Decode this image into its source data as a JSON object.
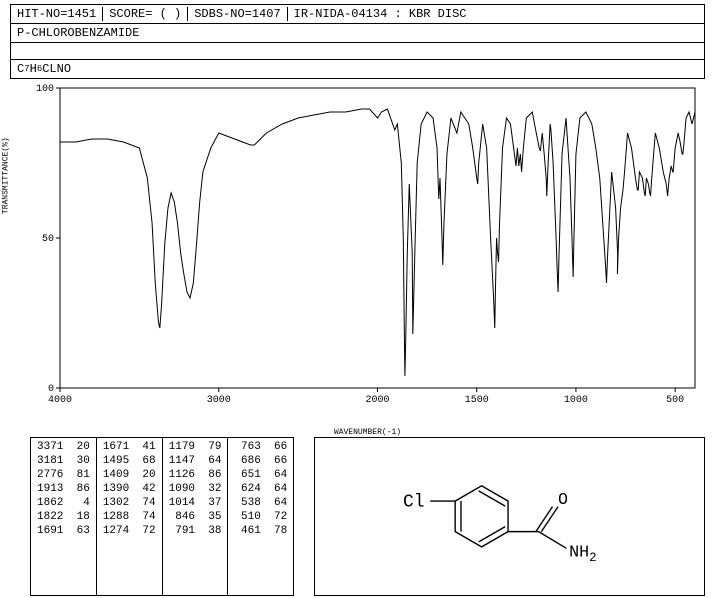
{
  "header": {
    "hit": "HIT-NO=1451",
    "score": "SCORE=  ( )",
    "sdbs": "SDBS-NO=1407",
    "spec": "IR-NIDA-04134 : KBR DISC"
  },
  "compound_name": "P-CHLOROBENZAMIDE",
  "formula_plain": "C7H6CLNO",
  "formula_parts": [
    "C",
    "7",
    "H",
    "6",
    "CLNO"
  ],
  "chart": {
    "type": "line",
    "xlabel": "WAVENUMBER(-1)",
    "ylabel": "TRANSMITTANCE(%)",
    "xlim": [
      4000,
      400
    ],
    "ylim": [
      0,
      100
    ],
    "xticks": [
      4000,
      3000,
      2000,
      1500,
      1000,
      500
    ],
    "yticks": [
      0,
      50,
      100
    ],
    "background_color": "#ffffff",
    "line_color": "#000000",
    "axis_color": "#000000",
    "line_width": 1,
    "series": [
      [
        4000,
        82
      ],
      [
        3900,
        82
      ],
      [
        3800,
        83
      ],
      [
        3700,
        83
      ],
      [
        3600,
        82
      ],
      [
        3500,
        80
      ],
      [
        3450,
        70
      ],
      [
        3420,
        55
      ],
      [
        3400,
        35
      ],
      [
        3380,
        22
      ],
      [
        3371,
        20
      ],
      [
        3360,
        28
      ],
      [
        3340,
        48
      ],
      [
        3320,
        60
      ],
      [
        3300,
        65
      ],
      [
        3280,
        62
      ],
      [
        3260,
        55
      ],
      [
        3240,
        45
      ],
      [
        3220,
        38
      ],
      [
        3200,
        32
      ],
      [
        3181,
        30
      ],
      [
        3160,
        35
      ],
      [
        3140,
        48
      ],
      [
        3120,
        62
      ],
      [
        3100,
        72
      ],
      [
        3050,
        80
      ],
      [
        3000,
        85
      ],
      [
        2950,
        84
      ],
      [
        2900,
        83
      ],
      [
        2850,
        82
      ],
      [
        2800,
        81
      ],
      [
        2776,
        81
      ],
      [
        2700,
        85
      ],
      [
        2600,
        88
      ],
      [
        2500,
        90
      ],
      [
        2400,
        91
      ],
      [
        2300,
        92
      ],
      [
        2200,
        92
      ],
      [
        2100,
        93
      ],
      [
        2050,
        93
      ],
      [
        2000,
        90
      ],
      [
        1980,
        92
      ],
      [
        1950,
        93
      ],
      [
        1913,
        86
      ],
      [
        1900,
        88
      ],
      [
        1880,
        75
      ],
      [
        1870,
        50
      ],
      [
        1865,
        20
      ],
      [
        1862,
        4
      ],
      [
        1858,
        15
      ],
      [
        1850,
        45
      ],
      [
        1840,
        68
      ],
      [
        1825,
        45
      ],
      [
        1822,
        18
      ],
      [
        1810,
        50
      ],
      [
        1800,
        75
      ],
      [
        1780,
        88
      ],
      [
        1750,
        92
      ],
      [
        1720,
        90
      ],
      [
        1700,
        80
      ],
      [
        1695,
        70
      ],
      [
        1691,
        63
      ],
      [
        1685,
        70
      ],
      [
        1680,
        60
      ],
      [
        1675,
        50
      ],
      [
        1671,
        41
      ],
      [
        1665,
        55
      ],
      [
        1650,
        78
      ],
      [
        1630,
        90
      ],
      [
        1600,
        85
      ],
      [
        1580,
        92
      ],
      [
        1560,
        90
      ],
      [
        1540,
        88
      ],
      [
        1520,
        80
      ],
      [
        1500,
        70
      ],
      [
        1495,
        68
      ],
      [
        1490,
        75
      ],
      [
        1470,
        88
      ],
      [
        1450,
        80
      ],
      [
        1430,
        50
      ],
      [
        1415,
        30
      ],
      [
        1409,
        20
      ],
      [
        1405,
        35
      ],
      [
        1400,
        50
      ],
      [
        1395,
        45
      ],
      [
        1390,
        42
      ],
      [
        1385,
        55
      ],
      [
        1370,
        80
      ],
      [
        1350,
        90
      ],
      [
        1330,
        88
      ],
      [
        1310,
        78
      ],
      [
        1302,
        74
      ],
      [
        1295,
        80
      ],
      [
        1288,
        74
      ],
      [
        1280,
        78
      ],
      [
        1274,
        72
      ],
      [
        1265,
        80
      ],
      [
        1250,
        90
      ],
      [
        1220,
        92
      ],
      [
        1200,
        85
      ],
      [
        1185,
        80
      ],
      [
        1179,
        79
      ],
      [
        1170,
        85
      ],
      [
        1160,
        78
      ],
      [
        1150,
        70
      ],
      [
        1147,
        64
      ],
      [
        1140,
        75
      ],
      [
        1130,
        88
      ],
      [
        1126,
        86
      ],
      [
        1115,
        75
      ],
      [
        1100,
        50
      ],
      [
        1095,
        40
      ],
      [
        1090,
        32
      ],
      [
        1085,
        45
      ],
      [
        1070,
        78
      ],
      [
        1050,
        90
      ],
      [
        1030,
        70
      ],
      [
        1020,
        50
      ],
      [
        1014,
        37
      ],
      [
        1010,
        50
      ],
      [
        1000,
        78
      ],
      [
        980,
        90
      ],
      [
        950,
        92
      ],
      [
        920,
        88
      ],
      [
        900,
        80
      ],
      [
        880,
        70
      ],
      [
        860,
        50
      ],
      [
        850,
        40
      ],
      [
        846,
        35
      ],
      [
        840,
        45
      ],
      [
        820,
        72
      ],
      [
        800,
        60
      ],
      [
        790,
        45
      ],
      [
        791,
        38
      ],
      [
        785,
        50
      ],
      [
        775,
        60
      ],
      [
        765,
        65
      ],
      [
        763,
        66
      ],
      [
        755,
        72
      ],
      [
        740,
        85
      ],
      [
        720,
        80
      ],
      [
        700,
        70
      ],
      [
        690,
        66
      ],
      [
        686,
        66
      ],
      [
        680,
        72
      ],
      [
        665,
        70
      ],
      [
        655,
        65
      ],
      [
        651,
        64
      ],
      [
        645,
        70
      ],
      [
        635,
        68
      ],
      [
        628,
        65
      ],
      [
        624,
        64
      ],
      [
        618,
        70
      ],
      [
        600,
        85
      ],
      [
        580,
        80
      ],
      [
        560,
        72
      ],
      [
        545,
        68
      ],
      [
        538,
        64
      ],
      [
        530,
        70
      ],
      [
        520,
        74
      ],
      [
        512,
        72
      ],
      [
        510,
        72
      ],
      [
        500,
        80
      ],
      [
        485,
        85
      ],
      [
        475,
        82
      ],
      [
        465,
        78
      ],
      [
        461,
        78
      ],
      [
        455,
        82
      ],
      [
        445,
        90
      ],
      [
        430,
        92
      ],
      [
        415,
        88
      ],
      [
        400,
        92
      ]
    ]
  },
  "peak_table": {
    "columns": [
      [
        [
          3371,
          20
        ],
        [
          3181,
          30
        ],
        [
          2776,
          81
        ],
        [
          1913,
          86
        ],
        [
          1862,
          4
        ],
        [
          1822,
          18
        ],
        [
          1691,
          63
        ]
      ],
      [
        [
          1671,
          41
        ],
        [
          1495,
          68
        ],
        [
          1409,
          20
        ],
        [
          1390,
          42
        ],
        [
          1302,
          74
        ],
        [
          1288,
          74
        ],
        [
          1274,
          72
        ]
      ],
      [
        [
          1179,
          79
        ],
        [
          1147,
          64
        ],
        [
          1126,
          86
        ],
        [
          1090,
          32
        ],
        [
          1014,
          37
        ],
        [
          846,
          35
        ],
        [
          791,
          38
        ]
      ],
      [
        [
          763,
          66
        ],
        [
          686,
          66
        ],
        [
          651,
          64
        ],
        [
          624,
          64
        ],
        [
          538,
          64
        ],
        [
          510,
          72
        ],
        [
          461,
          78
        ]
      ]
    ]
  },
  "structure": {
    "cl_label": "Cl",
    "nh2_label": "NH",
    "nh2_sub": "2",
    "o_label": "O",
    "line_color": "#000000"
  }
}
